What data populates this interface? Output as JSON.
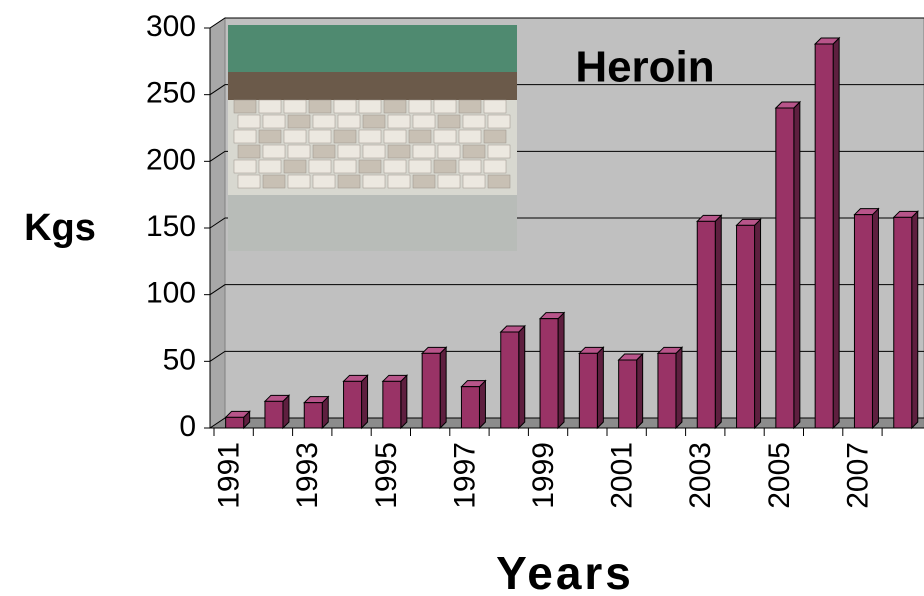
{
  "chart_data": {
    "type": "bar",
    "title": "Heroin",
    "y_label": "Kgs",
    "x_label": "Years",
    "categories": [
      "1991",
      null,
      "1993",
      null,
      "1995",
      null,
      "1997",
      null,
      "1999",
      null,
      "2001",
      null,
      "2003",
      null,
      "2005",
      null,
      "2007",
      null
    ],
    "values": [
      8,
      20,
      19,
      35,
      35,
      56,
      31,
      72,
      82,
      56,
      51,
      56,
      155,
      152,
      240,
      288,
      160,
      158
    ],
    "color": "#993366",
    "ylim": [
      0,
      300
    ],
    "yticks": [
      0,
      50,
      100,
      150,
      200,
      250,
      300
    ],
    "grid": true
  }
}
